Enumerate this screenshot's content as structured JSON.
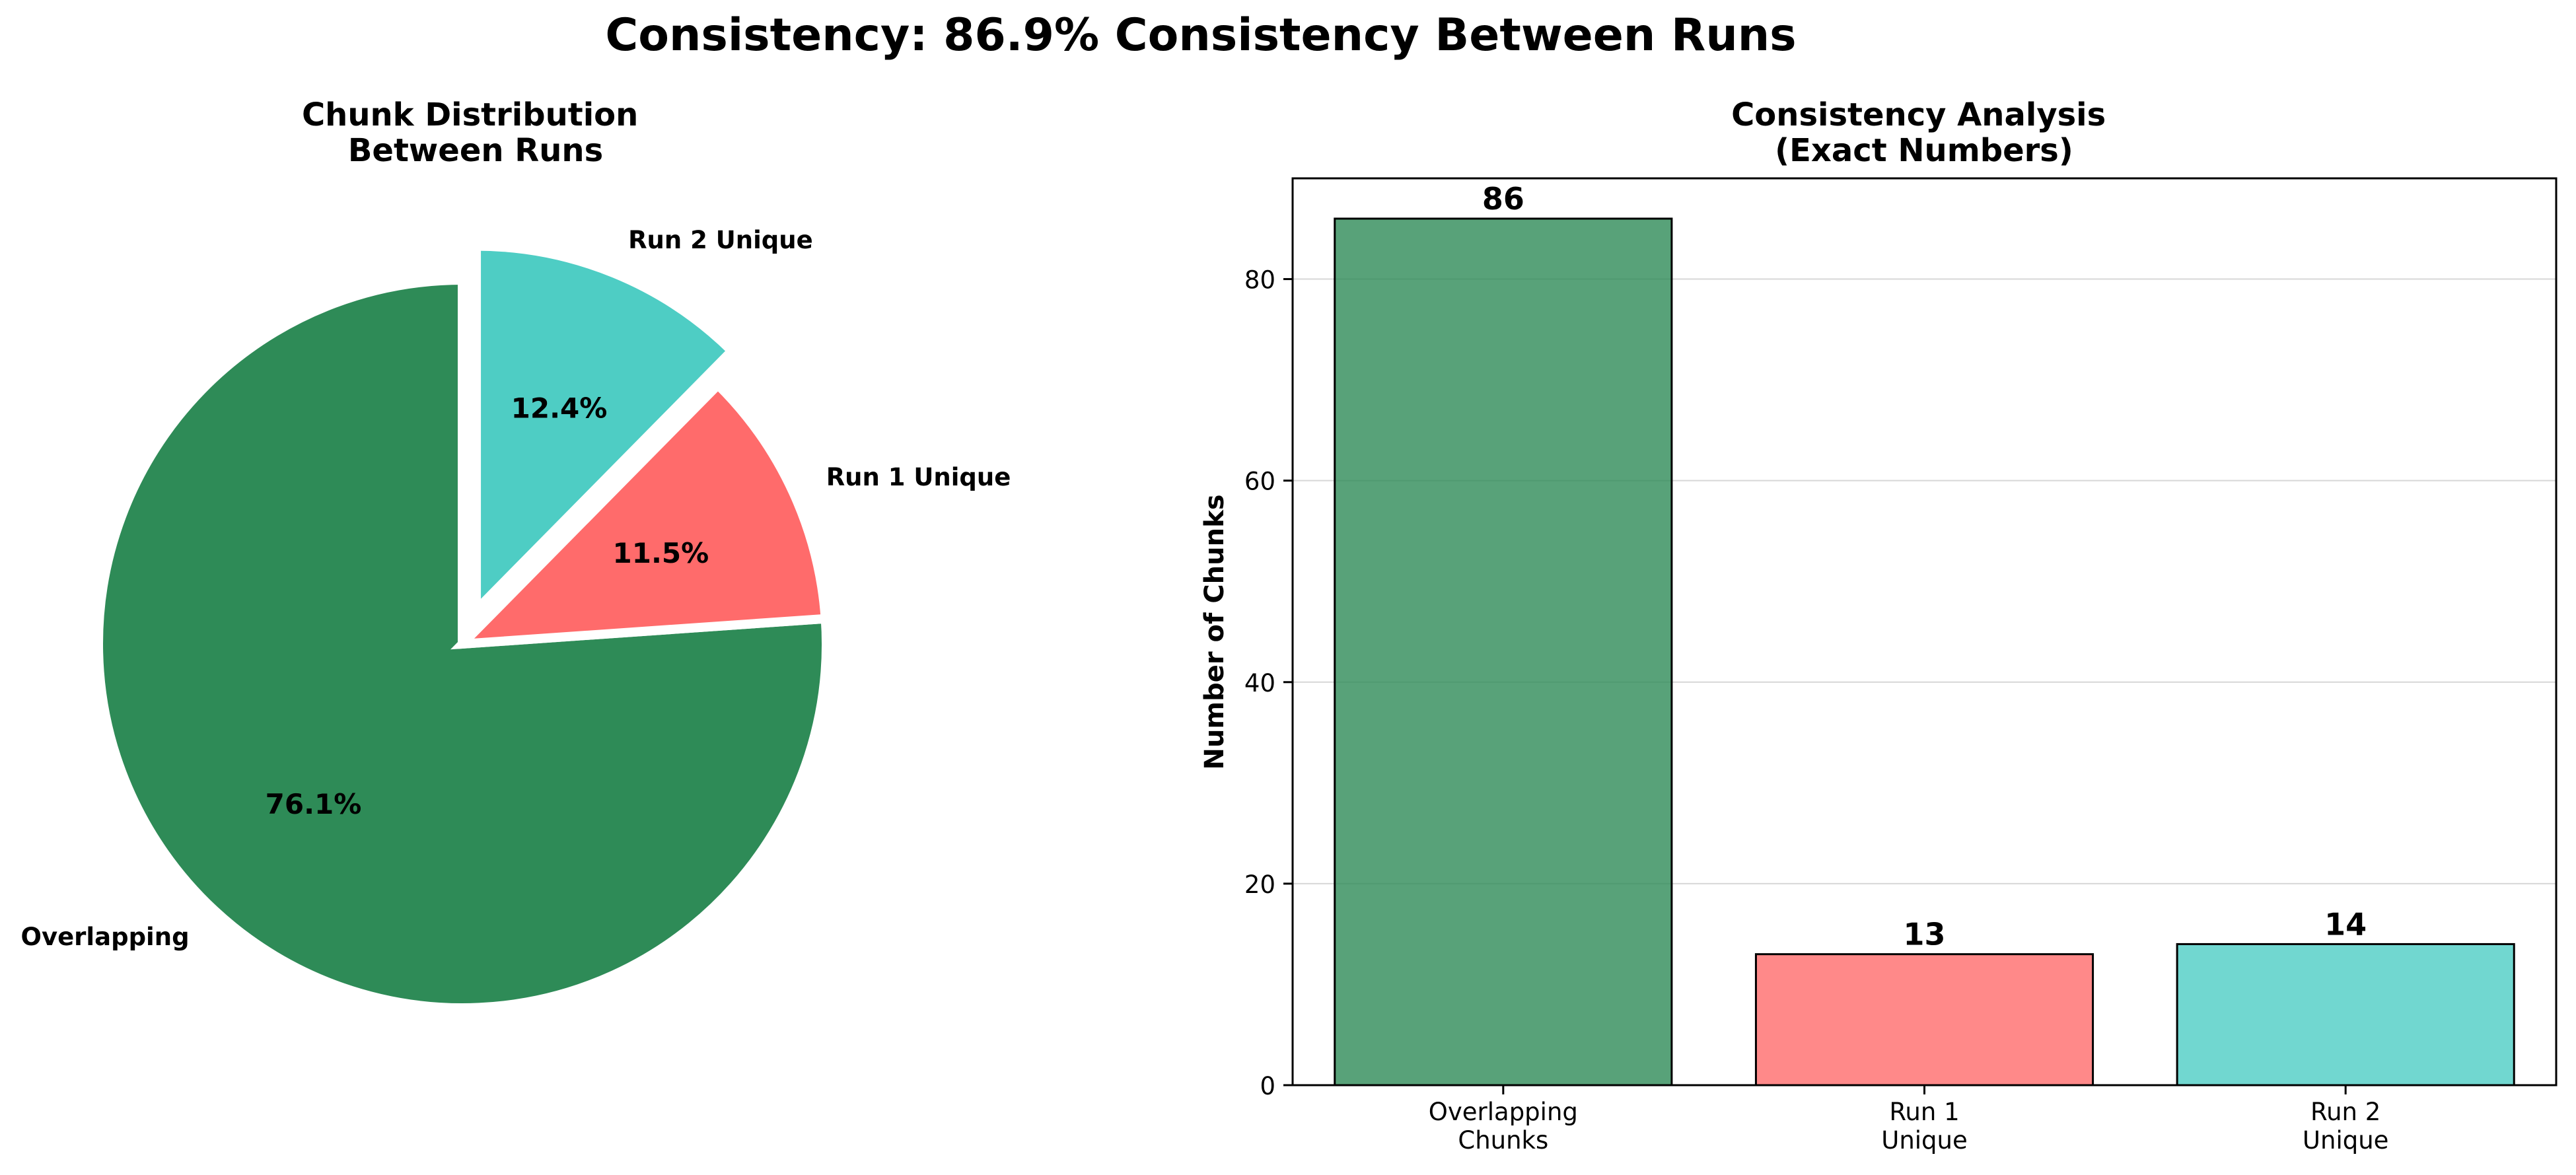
{
  "title": "Consistency: 86.9% Consistency Between Runs",
  "chart_data": [
    {
      "type": "pie",
      "title_lines": [
        "Chunk Distribution",
        "Between Runs"
      ],
      "labels": [
        "Overlapping",
        "Run 1 Unique",
        "Run 2 Unique"
      ],
      "values": [
        86,
        13,
        14
      ],
      "pct_labels": [
        "76.1%",
        "11.5%",
        "12.4%"
      ],
      "colors": [
        "#2e8b57",
        "#ff6b6b",
        "#4ecdc4"
      ],
      "exploded": [
        "Run 2 Unique"
      ]
    },
    {
      "type": "bar",
      "title_lines": [
        "Consistency Analysis",
        "(Exact Numbers)"
      ],
      "categories": [
        [
          "Overlapping",
          "Chunks"
        ],
        [
          "Run 1",
          "Unique"
        ],
        [
          "Run 2",
          "Unique"
        ]
      ],
      "values": [
        86,
        13,
        14
      ],
      "value_labels": [
        "86",
        "13",
        "14"
      ],
      "colors": [
        "#2e8b57",
        "#ff6b6b",
        "#4ecdc4"
      ],
      "ylabel": "Number of Chunks",
      "ylim": [
        0,
        90
      ],
      "yticks": [
        0,
        20,
        40,
        60,
        80
      ],
      "grid": "y"
    }
  ]
}
